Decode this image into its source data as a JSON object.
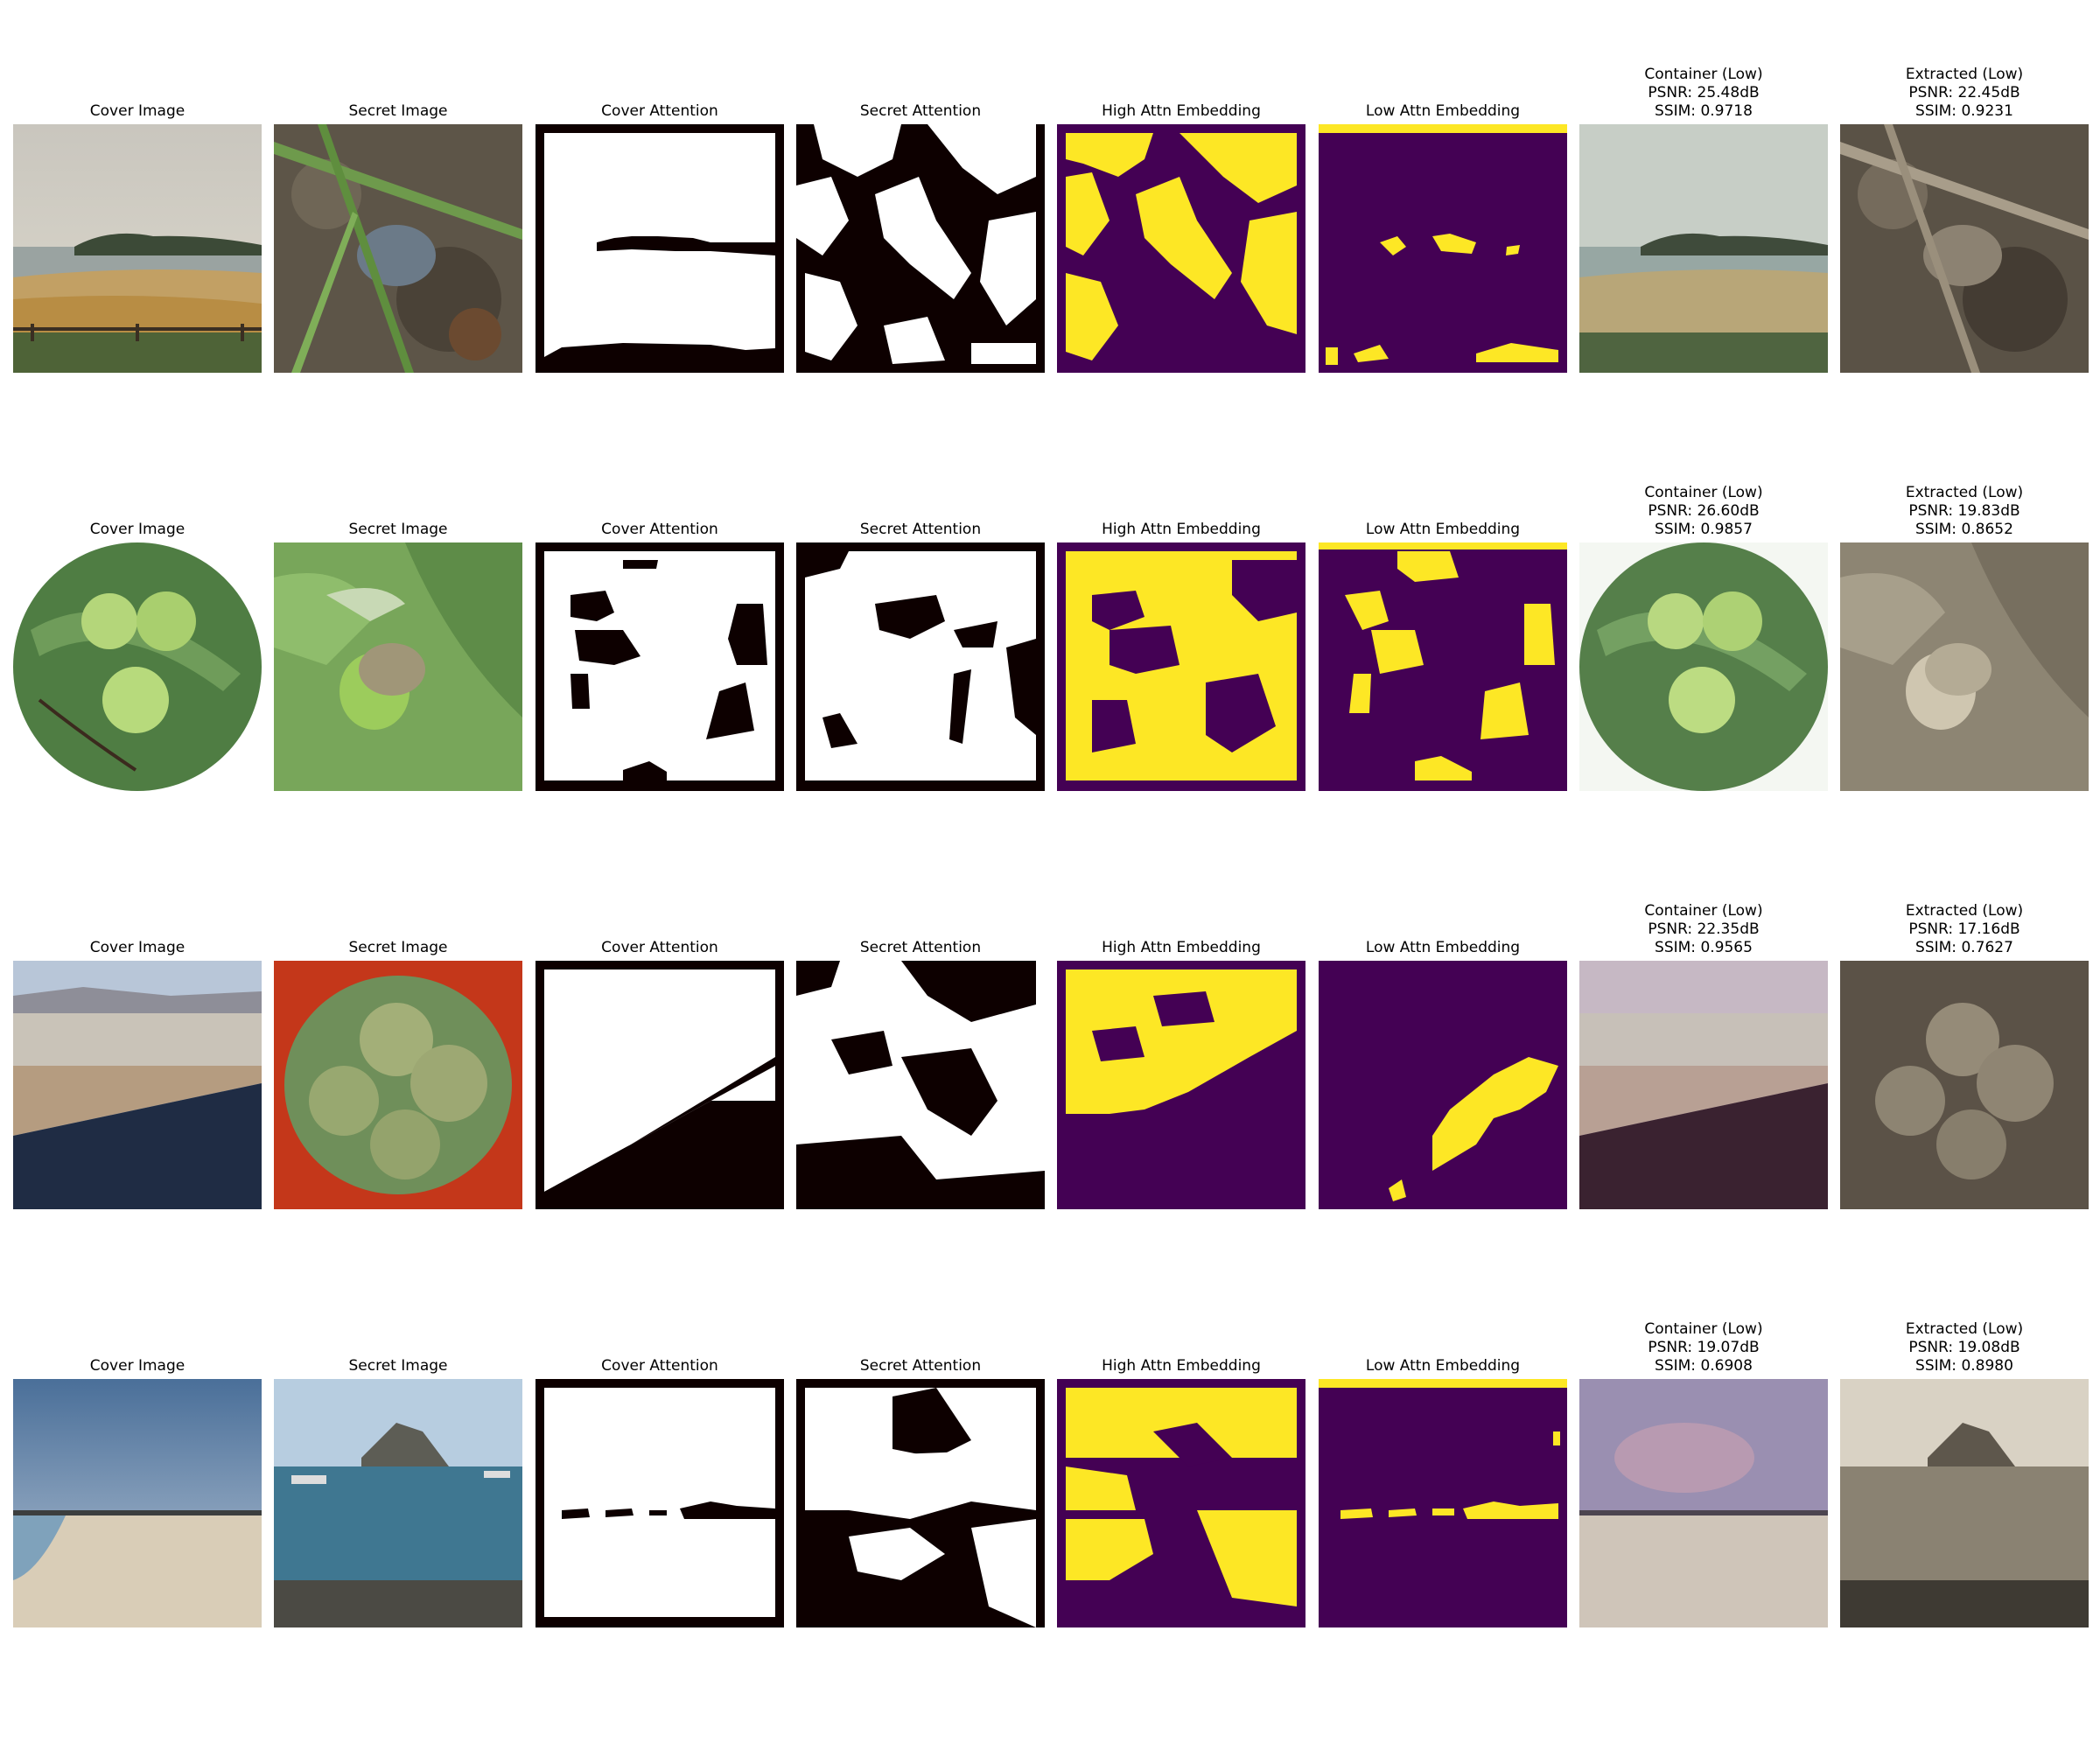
{
  "colors": {
    "mask_black": "#0d0000",
    "viridis_low": "#440154",
    "viridis_high": "#fde725"
  },
  "rows": [
    {
      "cover_title": "Cover Image",
      "secret_title": "Secret Image",
      "cover_attn_title": "Cover Attention",
      "secret_attn_title": "Secret Attention",
      "high_title": "High Attn Embedding",
      "low_title": "Low Attn Embedding",
      "container": {
        "title": "Container (Low)",
        "psnr": "PSNR: 25.48dB",
        "ssim": "SSIM: 0.9718"
      },
      "extracted": {
        "title": "Extracted (Low)",
        "psnr": "PSNR: 22.45dB",
        "ssim": "SSIM: 0.9231"
      }
    },
    {
      "cover_title": "Cover Image",
      "secret_title": "Secret Image",
      "cover_attn_title": "Cover Attention",
      "secret_attn_title": "Secret Attention",
      "high_title": "High Attn Embedding",
      "low_title": "Low Attn Embedding",
      "container": {
        "title": "Container (Low)",
        "psnr": "PSNR: 26.60dB",
        "ssim": "SSIM: 0.9857"
      },
      "extracted": {
        "title": "Extracted (Low)",
        "psnr": "PSNR: 19.83dB",
        "ssim": "SSIM: 0.8652"
      }
    },
    {
      "cover_title": "Cover Image",
      "secret_title": "Secret Image",
      "cover_attn_title": "Cover Attention",
      "secret_attn_title": "Secret Attention",
      "high_title": "High Attn Embedding",
      "low_title": "Low Attn Embedding",
      "container": {
        "title": "Container (Low)",
        "psnr": "PSNR: 22.35dB",
        "ssim": "SSIM: 0.9565"
      },
      "extracted": {
        "title": "Extracted (Low)",
        "psnr": "PSNR: 17.16dB",
        "ssim": "SSIM: 0.7627"
      }
    },
    {
      "cover_title": "Cover Image",
      "secret_title": "Secret Image",
      "cover_attn_title": "Cover Attention",
      "secret_attn_title": "Secret Attention",
      "high_title": "High Attn Embedding",
      "low_title": "Low Attn Embedding",
      "container": {
        "title": "Container (Low)",
        "psnr": "PSNR: 19.07dB",
        "ssim": "SSIM: 0.6908"
      },
      "extracted": {
        "title": "Extracted (Low)",
        "psnr": "PSNR: 19.08dB",
        "ssim": "SSIM: 0.8980"
      }
    }
  ]
}
